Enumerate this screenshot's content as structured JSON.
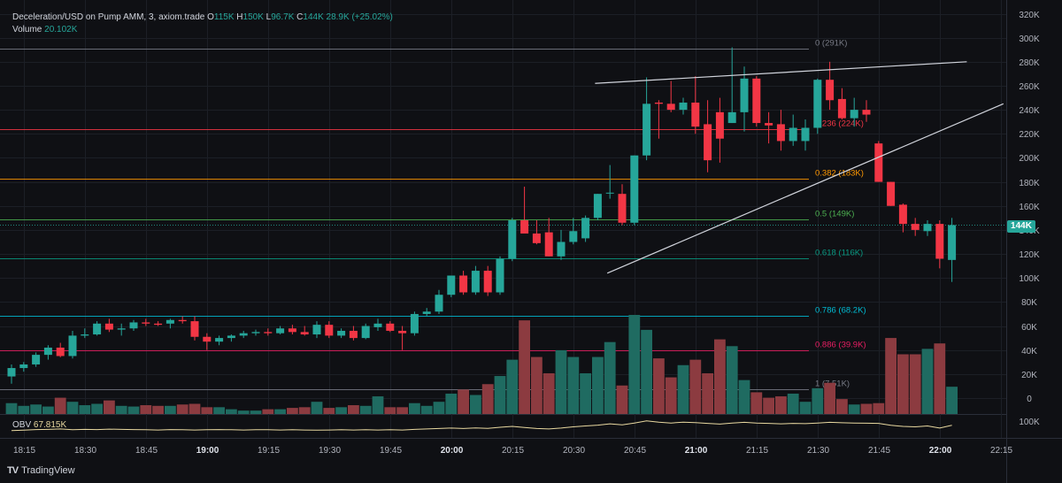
{
  "header": {
    "symbol": "Deceleration/USD on Pump AMM, 3, axiom.trade",
    "o_label": "O",
    "o_value": "115K",
    "h_label": "H",
    "h_value": "150K",
    "l_label": "L",
    "l_value": "96.7K",
    "c_label": "C",
    "c_value": "144K",
    "change": "28.9K (+25.02%)",
    "volume_label": "Volume",
    "volume_value": "20.102K"
  },
  "obv": {
    "label": "OBV",
    "value": "67.815K",
    "axis_label": "100K"
  },
  "branding": {
    "name": "TradingView"
  },
  "last_price_tag": "144K",
  "colors": {
    "up": "#26a69a",
    "down": "#f23645",
    "up_vol": "#1f6b61",
    "down_vol": "#8c3b40",
    "obv_line": "#e8d8a0",
    "trend": "#d1d4dc"
  },
  "chart_data": {
    "type": "candlestick",
    "y_axis": {
      "min": 0,
      "max": 320000,
      "ticks": [
        0,
        20000,
        40000,
        60000,
        80000,
        100000,
        120000,
        140000,
        160000,
        180000,
        200000,
        220000,
        240000,
        260000,
        280000,
        300000,
        320000
      ],
      "tick_labels": [
        "0",
        "20K",
        "40K",
        "60K",
        "80K",
        "100K",
        "120K",
        "140K",
        "160K",
        "180K",
        "200K",
        "220K",
        "240K",
        "260K",
        "280K",
        "300K",
        "320K"
      ]
    },
    "x_axis": {
      "start_minute": 1092,
      "interval_minutes": 3,
      "ticks": [
        {
          "minute": 1095,
          "label": "18:15",
          "bold": false
        },
        {
          "minute": 1110,
          "label": "18:30",
          "bold": false
        },
        {
          "minute": 1125,
          "label": "18:45",
          "bold": false
        },
        {
          "minute": 1140,
          "label": "19:00",
          "bold": true
        },
        {
          "minute": 1155,
          "label": "19:15",
          "bold": false
        },
        {
          "minute": 1170,
          "label": "19:30",
          "bold": false
        },
        {
          "minute": 1185,
          "label": "19:45",
          "bold": false
        },
        {
          "minute": 1200,
          "label": "20:00",
          "bold": true
        },
        {
          "minute": 1215,
          "label": "20:15",
          "bold": false
        },
        {
          "minute": 1230,
          "label": "20:30",
          "bold": false
        },
        {
          "minute": 1245,
          "label": "20:45",
          "bold": false
        },
        {
          "minute": 1260,
          "label": "21:00",
          "bold": true
        },
        {
          "minute": 1275,
          "label": "21:15",
          "bold": false
        },
        {
          "minute": 1290,
          "label": "21:30",
          "bold": false
        },
        {
          "minute": 1305,
          "label": "21:45",
          "bold": false
        },
        {
          "minute": 1320,
          "label": "22:00",
          "bold": true
        },
        {
          "minute": 1335,
          "label": "22:15",
          "bold": false
        }
      ]
    },
    "candles": [
      {
        "o": 18000,
        "h": 28000,
        "l": 12000,
        "c": 25000,
        "v": 8000
      },
      {
        "o": 25000,
        "h": 30000,
        "l": 22000,
        "c": 28000,
        "v": 6000
      },
      {
        "o": 28000,
        "h": 38000,
        "l": 26000,
        "c": 36000,
        "v": 7000
      },
      {
        "o": 36000,
        "h": 44000,
        "l": 32000,
        "c": 42000,
        "v": 5500
      },
      {
        "o": 42000,
        "h": 46000,
        "l": 34000,
        "c": 35000,
        "v": 12000
      },
      {
        "o": 35000,
        "h": 56000,
        "l": 33000,
        "c": 52000,
        "v": 9000
      },
      {
        "o": 52000,
        "h": 58000,
        "l": 50000,
        "c": 53000,
        "v": 6500
      },
      {
        "o": 53000,
        "h": 64000,
        "l": 52000,
        "c": 62000,
        "v": 7500
      },
      {
        "o": 62000,
        "h": 66000,
        "l": 55000,
        "c": 57000,
        "v": 10000
      },
      {
        "o": 57000,
        "h": 62000,
        "l": 52000,
        "c": 58000,
        "v": 6000
      },
      {
        "o": 58000,
        "h": 65000,
        "l": 56000,
        "c": 63000,
        "v": 5500
      },
      {
        "o": 63000,
        "h": 66000,
        "l": 60000,
        "c": 62000,
        "v": 6500
      },
      {
        "o": 62000,
        "h": 64000,
        "l": 60000,
        "c": 61000,
        "v": 6000
      },
      {
        "o": 62000,
        "h": 66000,
        "l": 58000,
        "c": 65000,
        "v": 6000
      },
      {
        "o": 65000,
        "h": 68000,
        "l": 62000,
        "c": 64000,
        "v": 7000
      },
      {
        "o": 64000,
        "h": 68000,
        "l": 48000,
        "c": 51000,
        "v": 7500
      },
      {
        "o": 51000,
        "h": 54000,
        "l": 40000,
        "c": 47000,
        "v": 5000
      },
      {
        "o": 47000,
        "h": 52000,
        "l": 44000,
        "c": 50000,
        "v": 5000
      },
      {
        "o": 50000,
        "h": 53000,
        "l": 47000,
        "c": 52000,
        "v": 3500
      },
      {
        "o": 52000,
        "h": 56000,
        "l": 50000,
        "c": 54000,
        "v": 2500
      },
      {
        "o": 54000,
        "h": 57000,
        "l": 52000,
        "c": 55000,
        "v": 2500
      },
      {
        "o": 55000,
        "h": 58000,
        "l": 52000,
        "c": 54000,
        "v": 3500
      },
      {
        "o": 54000,
        "h": 60000,
        "l": 53000,
        "c": 58000,
        "v": 3500
      },
      {
        "o": 58000,
        "h": 61000,
        "l": 53000,
        "c": 55000,
        "v": 4500
      },
      {
        "o": 55000,
        "h": 60000,
        "l": 52000,
        "c": 53000,
        "v": 5000
      },
      {
        "o": 53000,
        "h": 64000,
        "l": 50000,
        "c": 61000,
        "v": 9000
      },
      {
        "o": 61000,
        "h": 64000,
        "l": 50000,
        "c": 52000,
        "v": 4500
      },
      {
        "o": 52000,
        "h": 58000,
        "l": 50000,
        "c": 56000,
        "v": 5000
      },
      {
        "o": 56000,
        "h": 60000,
        "l": 48000,
        "c": 50000,
        "v": 6500
      },
      {
        "o": 50000,
        "h": 62000,
        "l": 49000,
        "c": 60000,
        "v": 6000
      },
      {
        "o": 59000,
        "h": 66000,
        "l": 56000,
        "c": 62000,
        "v": 13000
      },
      {
        "o": 62000,
        "h": 64000,
        "l": 55000,
        "c": 56000,
        "v": 5000
      },
      {
        "o": 56000,
        "h": 60000,
        "l": 40000,
        "c": 54000,
        "v": 5000
      },
      {
        "o": 54000,
        "h": 72000,
        "l": 52000,
        "c": 70000,
        "v": 8000
      },
      {
        "o": 70000,
        "h": 75000,
        "l": 68000,
        "c": 72000,
        "v": 6000
      },
      {
        "o": 72000,
        "h": 90000,
        "l": 70000,
        "c": 86000,
        "v": 9000
      },
      {
        "o": 86000,
        "h": 102000,
        "l": 84000,
        "c": 102000,
        "v": 15000
      },
      {
        "o": 102000,
        "h": 106000,
        "l": 86000,
        "c": 88000,
        "v": 18000
      },
      {
        "o": 88000,
        "h": 110000,
        "l": 86000,
        "c": 106000,
        "v": 14000
      },
      {
        "o": 106000,
        "h": 110000,
        "l": 85000,
        "c": 88000,
        "v": 22000
      },
      {
        "o": 88000,
        "h": 118000,
        "l": 86000,
        "c": 116000,
        "v": 28000
      },
      {
        "o": 116000,
        "h": 150000,
        "l": 114000,
        "c": 148000,
        "v": 40000
      },
      {
        "o": 148000,
        "h": 176000,
        "l": 138000,
        "c": 137000,
        "v": 69000
      },
      {
        "o": 137000,
        "h": 148000,
        "l": 128000,
        "c": 129000,
        "v": 42000
      },
      {
        "o": 138000,
        "h": 150000,
        "l": 118000,
        "c": 118000,
        "v": 30000
      },
      {
        "o": 118000,
        "h": 140000,
        "l": 115000,
        "c": 130000,
        "v": 47000
      },
      {
        "o": 130000,
        "h": 150000,
        "l": 128000,
        "c": 139000,
        "v": 42000
      },
      {
        "o": 133000,
        "h": 152000,
        "l": 130000,
        "c": 150000,
        "v": 30000
      },
      {
        "o": 150000,
        "h": 170000,
        "l": 148000,
        "c": 170000,
        "v": 42000
      },
      {
        "o": 171000,
        "h": 194000,
        "l": 166000,
        "c": 171000,
        "v": 53000
      },
      {
        "o": 170000,
        "h": 178000,
        "l": 144000,
        "c": 146000,
        "v": 21000
      },
      {
        "o": 146000,
        "h": 202000,
        "l": 144000,
        "c": 202000,
        "v": 73000
      },
      {
        "o": 202000,
        "h": 267000,
        "l": 198000,
        "c": 245000,
        "v": 62000
      },
      {
        "o": 246000,
        "h": 248000,
        "l": 216000,
        "c": 245000,
        "v": 41000
      },
      {
        "o": 245000,
        "h": 264000,
        "l": 238000,
        "c": 240000,
        "v": 27000
      },
      {
        "o": 240000,
        "h": 250000,
        "l": 236000,
        "c": 246000,
        "v": 36000
      },
      {
        "o": 246000,
        "h": 268000,
        "l": 220000,
        "c": 226000,
        "v": 40000
      },
      {
        "o": 228000,
        "h": 248000,
        "l": 188000,
        "c": 198000,
        "v": 30000
      },
      {
        "o": 238000,
        "h": 250000,
        "l": 196000,
        "c": 216000,
        "v": 55000
      },
      {
        "o": 229000,
        "h": 292000,
        "l": 229000,
        "c": 238000,
        "v": 50000
      },
      {
        "o": 238000,
        "h": 276000,
        "l": 222000,
        "c": 266000,
        "v": 25000
      },
      {
        "o": 266000,
        "h": 268000,
        "l": 226000,
        "c": 229000,
        "v": 16000
      },
      {
        "o": 229000,
        "h": 238000,
        "l": 212000,
        "c": 227000,
        "v": 12000
      },
      {
        "o": 228000,
        "h": 240000,
        "l": 206000,
        "c": 214000,
        "v": 13000
      },
      {
        "o": 214000,
        "h": 236000,
        "l": 210000,
        "c": 225000,
        "v": 15000
      },
      {
        "o": 214000,
        "h": 232000,
        "l": 206000,
        "c": 225000,
        "v": 9000
      },
      {
        "o": 225000,
        "h": 266000,
        "l": 220000,
        "c": 265000,
        "v": 19000
      },
      {
        "o": 265000,
        "h": 280000,
        "l": 240000,
        "c": 248000,
        "v": 23000
      },
      {
        "o": 249000,
        "h": 258000,
        "l": 232000,
        "c": 233000,
        "v": 11000
      },
      {
        "o": 233000,
        "h": 250000,
        "l": 226000,
        "c": 240000,
        "v": 7000
      },
      {
        "o": 240000,
        "h": 248000,
        "l": 230000,
        "c": 236000,
        "v": 7500
      },
      {
        "o": 212000,
        "h": 214000,
        "l": 180000,
        "c": 180000,
        "v": 8000
      },
      {
        "o": 180000,
        "h": 180000,
        "l": 160000,
        "c": 160000,
        "v": 56000
      },
      {
        "o": 161000,
        "h": 162000,
        "l": 138000,
        "c": 145000,
        "v": 44000
      },
      {
        "o": 145000,
        "h": 150000,
        "l": 135000,
        "c": 140000,
        "v": 44000
      },
      {
        "o": 139000,
        "h": 148000,
        "l": 135000,
        "c": 145000,
        "v": 48000
      },
      {
        "o": 145000,
        "h": 148000,
        "l": 108000,
        "c": 116000,
        "v": 52000
      },
      {
        "o": 115000,
        "h": 150000,
        "l": 96700,
        "c": 144000,
        "v": 20102
      }
    ],
    "fib_levels": [
      {
        "label": "0 (291K)",
        "value": 291000,
        "color": "#787b86"
      },
      {
        "label": "0.236 (224K)",
        "value": 224000,
        "color": "#f23645"
      },
      {
        "label": "0.382 (183K)",
        "value": 183000,
        "color": "#ff9800"
      },
      {
        "label": "0.5 (149K)",
        "value": 149000,
        "color": "#4caf50"
      },
      {
        "label": "0.618 (116K)",
        "value": 116000,
        "color": "#089981"
      },
      {
        "label": "0.786 (68.2K)",
        "value": 68200,
        "color": "#00bcd4"
      },
      {
        "label": "0.886 (39.9K)",
        "value": 39900,
        "color": "#e91e63"
      },
      {
        "label": "1 (7.51K)",
        "value": 7510,
        "color": "#787b86"
      }
    ],
    "trendlines": [
      {
        "x1_index": 48,
        "y1": 262000,
        "x2_index": 78,
        "y2": 280000
      },
      {
        "x1_index": 49,
        "y1": 104000,
        "x2_index": 81,
        "y2": 245000
      }
    ],
    "obv_series": [
      0.3,
      0.32,
      0.35,
      0.36,
      0.38,
      0.34,
      0.36,
      0.35,
      0.37,
      0.36,
      0.35,
      0.34,
      0.33,
      0.35,
      0.34,
      0.33,
      0.34,
      0.35,
      0.34,
      0.33,
      0.34,
      0.34,
      0.33,
      0.34,
      0.33,
      0.32,
      0.33,
      0.34,
      0.33,
      0.34,
      0.33,
      0.34,
      0.33,
      0.36,
      0.38,
      0.4,
      0.42,
      0.4,
      0.43,
      0.41,
      0.46,
      0.5,
      0.45,
      0.4,
      0.38,
      0.42,
      0.48,
      0.52,
      0.56,
      0.62,
      0.57,
      0.66,
      0.76,
      0.7,
      0.66,
      0.7,
      0.68,
      0.64,
      0.61,
      0.66,
      0.69,
      0.66,
      0.64,
      0.62,
      0.64,
      0.63,
      0.66,
      0.69,
      0.67,
      0.66,
      0.65,
      0.64,
      0.55,
      0.5,
      0.48,
      0.52,
      0.42,
      0.55
    ]
  }
}
